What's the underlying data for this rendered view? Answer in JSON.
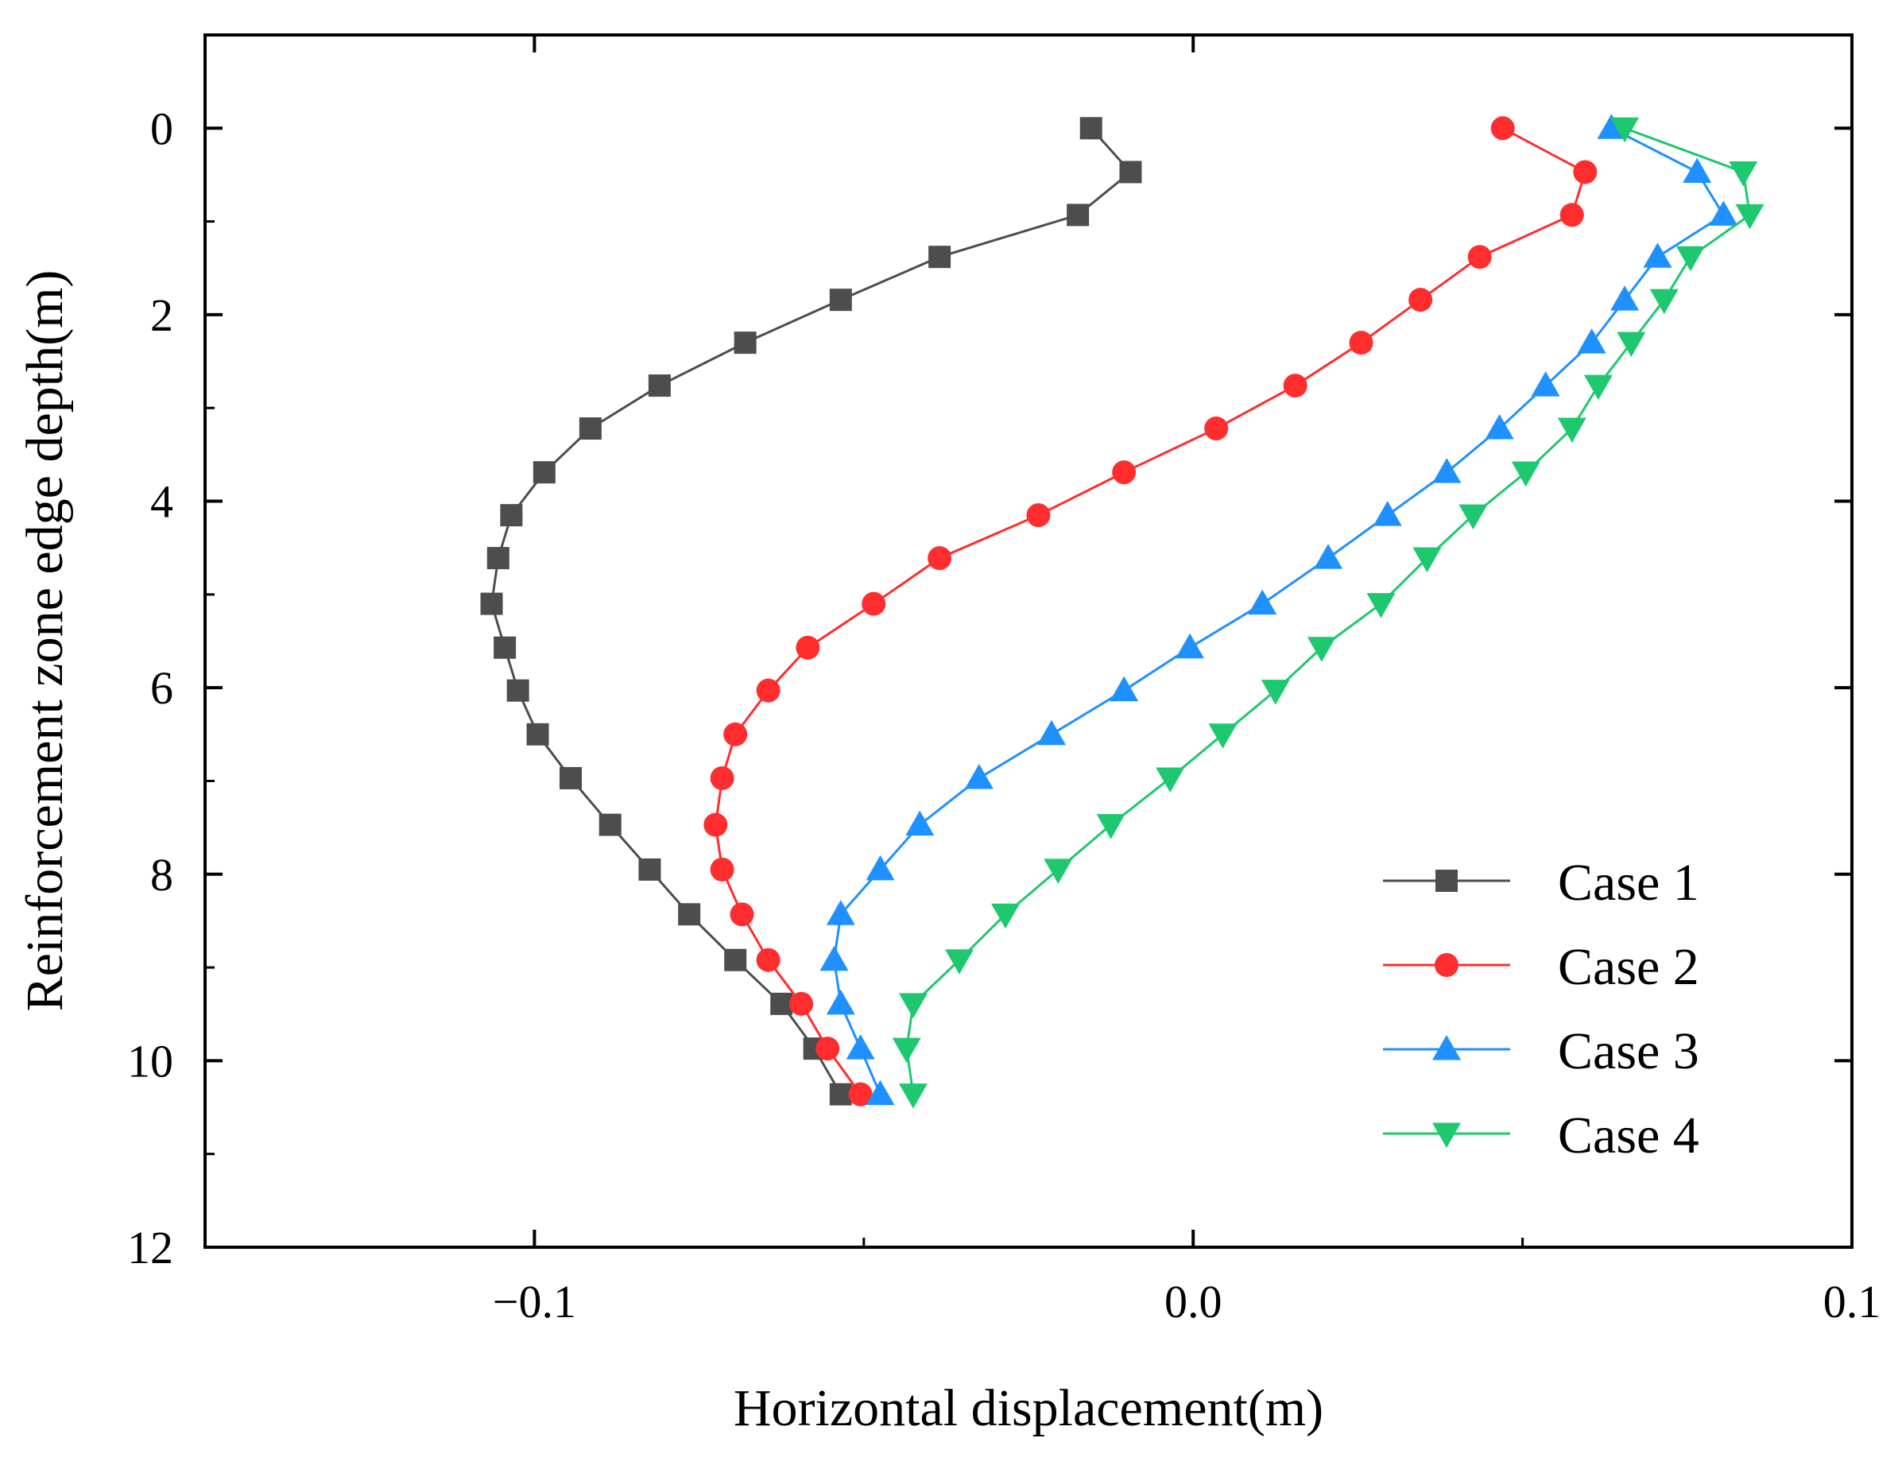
{
  "chart_data": {
    "type": "line",
    "title": "",
    "xlabel": "Horizontal displacement(m)",
    "ylabel": "Reinforcement zone edge depth(m)",
    "xlim": [
      -0.15,
      0.1
    ],
    "ylim": [
      12,
      -1
    ],
    "x_ticks": [
      -0.1,
      0.0,
      0.1
    ],
    "x_tick_labels": [
      "−0.1",
      "0.0",
      "0.1"
    ],
    "y_ticks": [
      0,
      2,
      4,
      6,
      8,
      10,
      12
    ],
    "y_tick_labels": [
      "0",
      "2",
      "4",
      "6",
      "8",
      "10",
      "12"
    ],
    "grid": false,
    "legend_position": "bottom-right",
    "series": [
      {
        "name": "Case 1",
        "marker": "square",
        "color": "#4d4d4d",
        "x": [
          -0.0155,
          -0.0095,
          -0.0175,
          -0.0385,
          -0.0535,
          -0.068,
          -0.081,
          -0.0915,
          -0.0985,
          -0.1035,
          -0.1055,
          -0.1065,
          -0.1045,
          -0.1025,
          -0.0995,
          -0.0945,
          -0.0885,
          -0.0825,
          -0.0765,
          -0.0695,
          -0.0625,
          -0.0575,
          -0.0535
        ],
        "y": [
          0.0,
          0.47,
          0.93,
          1.38,
          1.84,
          2.3,
          2.76,
          3.22,
          3.69,
          4.15,
          4.61,
          5.1,
          5.57,
          6.03,
          6.5,
          6.97,
          7.47,
          7.95,
          8.43,
          8.92,
          9.39,
          9.87,
          10.36
        ]
      },
      {
        "name": "Case 2",
        "marker": "circle",
        "color": "#ff2d2d",
        "x": [
          0.047,
          0.0595,
          0.0575,
          0.0435,
          0.0345,
          0.0255,
          0.0155,
          0.0035,
          -0.0105,
          -0.0235,
          -0.0385,
          -0.0485,
          -0.0585,
          -0.0645,
          -0.0695,
          -0.0715,
          -0.0725,
          -0.0715,
          -0.0685,
          -0.0645,
          -0.0595,
          -0.0555,
          -0.0505
        ],
        "y": [
          0.0,
          0.47,
          0.93,
          1.38,
          1.84,
          2.3,
          2.76,
          3.22,
          3.69,
          4.15,
          4.61,
          5.1,
          5.57,
          6.03,
          6.5,
          6.97,
          7.47,
          7.95,
          8.43,
          8.92,
          9.39,
          9.87,
          10.36
        ]
      },
      {
        "name": "Case 3",
        "marker": "triangle-up",
        "color": "#1e90ff",
        "x": [
          0.0635,
          0.0765,
          0.0805,
          0.0705,
          0.0655,
          0.0605,
          0.0535,
          0.0465,
          0.0385,
          0.0295,
          0.0205,
          0.0105,
          -0.0005,
          -0.0105,
          -0.0215,
          -0.0325,
          -0.0415,
          -0.0475,
          -0.0535,
          -0.0545,
          -0.0535,
          -0.0505,
          -0.0475
        ],
        "y": [
          0.0,
          0.47,
          0.93,
          1.38,
          1.84,
          2.3,
          2.76,
          3.22,
          3.69,
          4.15,
          4.61,
          5.1,
          5.57,
          6.03,
          6.5,
          6.97,
          7.47,
          7.95,
          8.43,
          8.92,
          9.39,
          9.87,
          10.36
        ]
      },
      {
        "name": "Case 4",
        "marker": "triangle-down",
        "color": "#1ec86e",
        "x": [
          0.0655,
          0.0835,
          0.0845,
          0.0755,
          0.0715,
          0.0665,
          0.0615,
          0.0575,
          0.0505,
          0.0425,
          0.0355,
          0.0285,
          0.0195,
          0.0125,
          0.0045,
          -0.0035,
          -0.0125,
          -0.0205,
          -0.0285,
          -0.0355,
          -0.0425,
          -0.0435,
          -0.0425
        ],
        "y": [
          0.0,
          0.47,
          0.93,
          1.38,
          1.84,
          2.3,
          2.76,
          3.22,
          3.69,
          4.15,
          4.61,
          5.1,
          5.57,
          6.03,
          6.5,
          6.97,
          7.47,
          7.95,
          8.43,
          8.92,
          9.39,
          9.87,
          10.36
        ]
      }
    ]
  }
}
